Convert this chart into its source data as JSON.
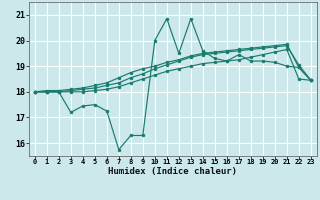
{
  "background_color": "#cce8eb",
  "grid_color": "#ffffff",
  "line_color": "#1a7a6e",
  "x_label": "Humidex (Indice chaleur)",
  "ylim": [
    15.5,
    21.5
  ],
  "xlim": [
    -0.5,
    23.5
  ],
  "y_ticks": [
    16,
    17,
    18,
    19,
    20,
    21
  ],
  "x_ticks": [
    0,
    1,
    2,
    3,
    4,
    5,
    6,
    7,
    8,
    9,
    10,
    11,
    12,
    13,
    14,
    15,
    16,
    17,
    18,
    19,
    20,
    21,
    22,
    23
  ],
  "line_upper": [
    18.0,
    18.05,
    18.05,
    18.1,
    18.15,
    18.25,
    18.35,
    18.55,
    18.75,
    18.9,
    19.0,
    19.15,
    19.25,
    19.4,
    19.5,
    19.55,
    19.6,
    19.65,
    19.7,
    19.75,
    19.8,
    19.85,
    18.95,
    18.45
  ],
  "line_mid1": [
    18.0,
    18.0,
    18.0,
    18.05,
    18.1,
    18.15,
    18.25,
    18.35,
    18.55,
    18.7,
    18.9,
    19.05,
    19.2,
    19.35,
    19.45,
    19.5,
    19.55,
    19.6,
    19.65,
    19.7,
    19.75,
    19.8,
    19.05,
    18.45
  ],
  "line_mid2": [
    18.0,
    18.0,
    18.0,
    18.0,
    18.0,
    18.05,
    18.1,
    18.2,
    18.35,
    18.5,
    18.65,
    18.8,
    18.9,
    19.0,
    19.1,
    19.15,
    19.2,
    19.25,
    19.35,
    19.45,
    19.55,
    19.65,
    18.5,
    18.45
  ],
  "line_actual": [
    18.0,
    18.0,
    18.0,
    17.2,
    17.45,
    17.5,
    17.25,
    15.75,
    16.3,
    16.3,
    20.0,
    20.85,
    19.5,
    20.85,
    19.6,
    19.3,
    19.2,
    19.45,
    19.2,
    19.2,
    19.15,
    19.0,
    18.95,
    18.45
  ]
}
